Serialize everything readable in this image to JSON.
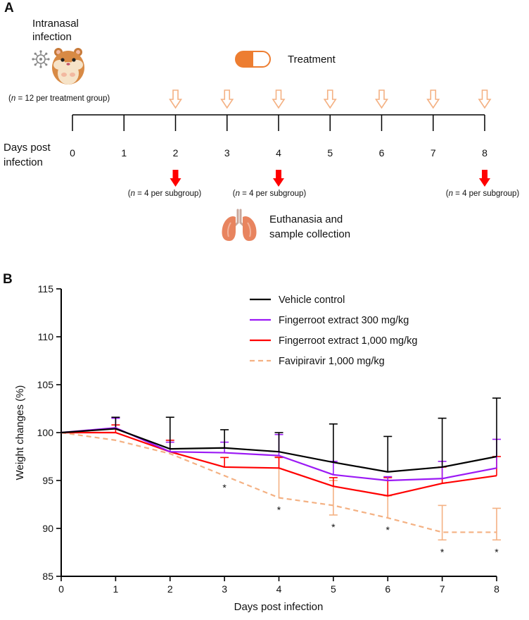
{
  "panel_a": {
    "label": "A",
    "infection_label_line1": "Intranasal",
    "infection_label_line2": "infection",
    "group_size_prefix": "n",
    "group_size_suffix": " = 12 per treatment group)",
    "treatment_label": "Treatment",
    "axis_label_line1": "Days post",
    "axis_label_line2": "infection",
    "days": [
      "0",
      "1",
      "2",
      "3",
      "4",
      "5",
      "6",
      "7",
      "8"
    ],
    "treatment_days": [
      2,
      3,
      4,
      5,
      6,
      7,
      8
    ],
    "euthanasia_days": [
      2,
      4,
      8
    ],
    "subgroup_prefix": "n",
    "subgroup_suffix": " = 4 per subgroup)",
    "euthanasia_label_line1": "Euthanasia and",
    "euthanasia_label_line2": "sample collection",
    "colors": {
      "treatment_arrow": "#f4b183",
      "euthanasia_arrow": "#ff0000",
      "capsule": "#ed7d31"
    },
    "icons": [
      "virus-icon",
      "hamster-icon",
      "capsule-icon",
      "lungs-icon"
    ]
  },
  "chart_data": {
    "panel_label": "B",
    "type": "line",
    "xlabel": "Days post infection",
    "ylabel": "Weight changes (%)",
    "x": [
      0,
      1,
      2,
      3,
      4,
      5,
      6,
      7,
      8
    ],
    "xticks": [
      "0",
      "1",
      "2",
      "3",
      "4",
      "5",
      "6",
      "7",
      "8"
    ],
    "yticks": [
      "85",
      "90",
      "95",
      "100",
      "105",
      "110",
      "115"
    ],
    "xlim": [
      0,
      8
    ],
    "ylim": [
      85,
      115
    ],
    "legend_position": "top-right",
    "series": [
      {
        "name": "Vehicle control",
        "color": "#000000",
        "dashed": false,
        "values": [
          100,
          100.4,
          98.3,
          98.4,
          98.0,
          96.9,
          95.9,
          96.4,
          97.5
        ],
        "err_upper": [
          null,
          101.6,
          101.6,
          100.3,
          100.0,
          100.9,
          99.6,
          101.5,
          103.6
        ],
        "err_lower": []
      },
      {
        "name": "Fingerroot extract 300 mg/kg",
        "color": "#9b19f5",
        "dashed": false,
        "values": [
          100,
          100.5,
          98.0,
          97.9,
          97.6,
          95.6,
          95.0,
          95.2,
          96.3
        ],
        "err_upper": [
          null,
          101.5,
          99.0,
          99.0,
          99.8,
          97.0,
          95.4,
          97.0,
          99.3
        ],
        "err_lower": []
      },
      {
        "name": "Fingerroot extract 1,000 mg/kg",
        "color": "#ff0000",
        "dashed": false,
        "values": [
          100,
          100.0,
          98.0,
          96.4,
          96.3,
          94.4,
          93.4,
          94.7,
          95.5
        ],
        "err_upper": [
          null,
          100.8,
          99.2,
          97.4,
          97.4,
          95.3,
          95.3,
          96.4,
          97.5
        ],
        "err_lower": []
      },
      {
        "name": "Favipiravir 1,000 mg/kg",
        "color": "#f4b183",
        "dashed": true,
        "values": [
          100,
          99.2,
          97.8,
          95.5,
          93.2,
          92.4,
          91.1,
          89.6,
          89.6
        ],
        "err_upper": [
          null,
          null,
          null,
          null,
          97.5,
          95.0,
          93.4,
          92.4,
          92.1
        ],
        "err_lower": [
          null,
          null,
          null,
          null,
          null,
          91.4,
          null,
          88.8,
          88.8
        ]
      }
    ],
    "significance": [
      {
        "x": 3,
        "label": "*"
      },
      {
        "x": 4,
        "label": "*"
      },
      {
        "x": 5,
        "label": "*"
      },
      {
        "x": 6,
        "label": "*"
      },
      {
        "x": 7,
        "label": "*"
      },
      {
        "x": 8,
        "label": "*"
      }
    ]
  }
}
